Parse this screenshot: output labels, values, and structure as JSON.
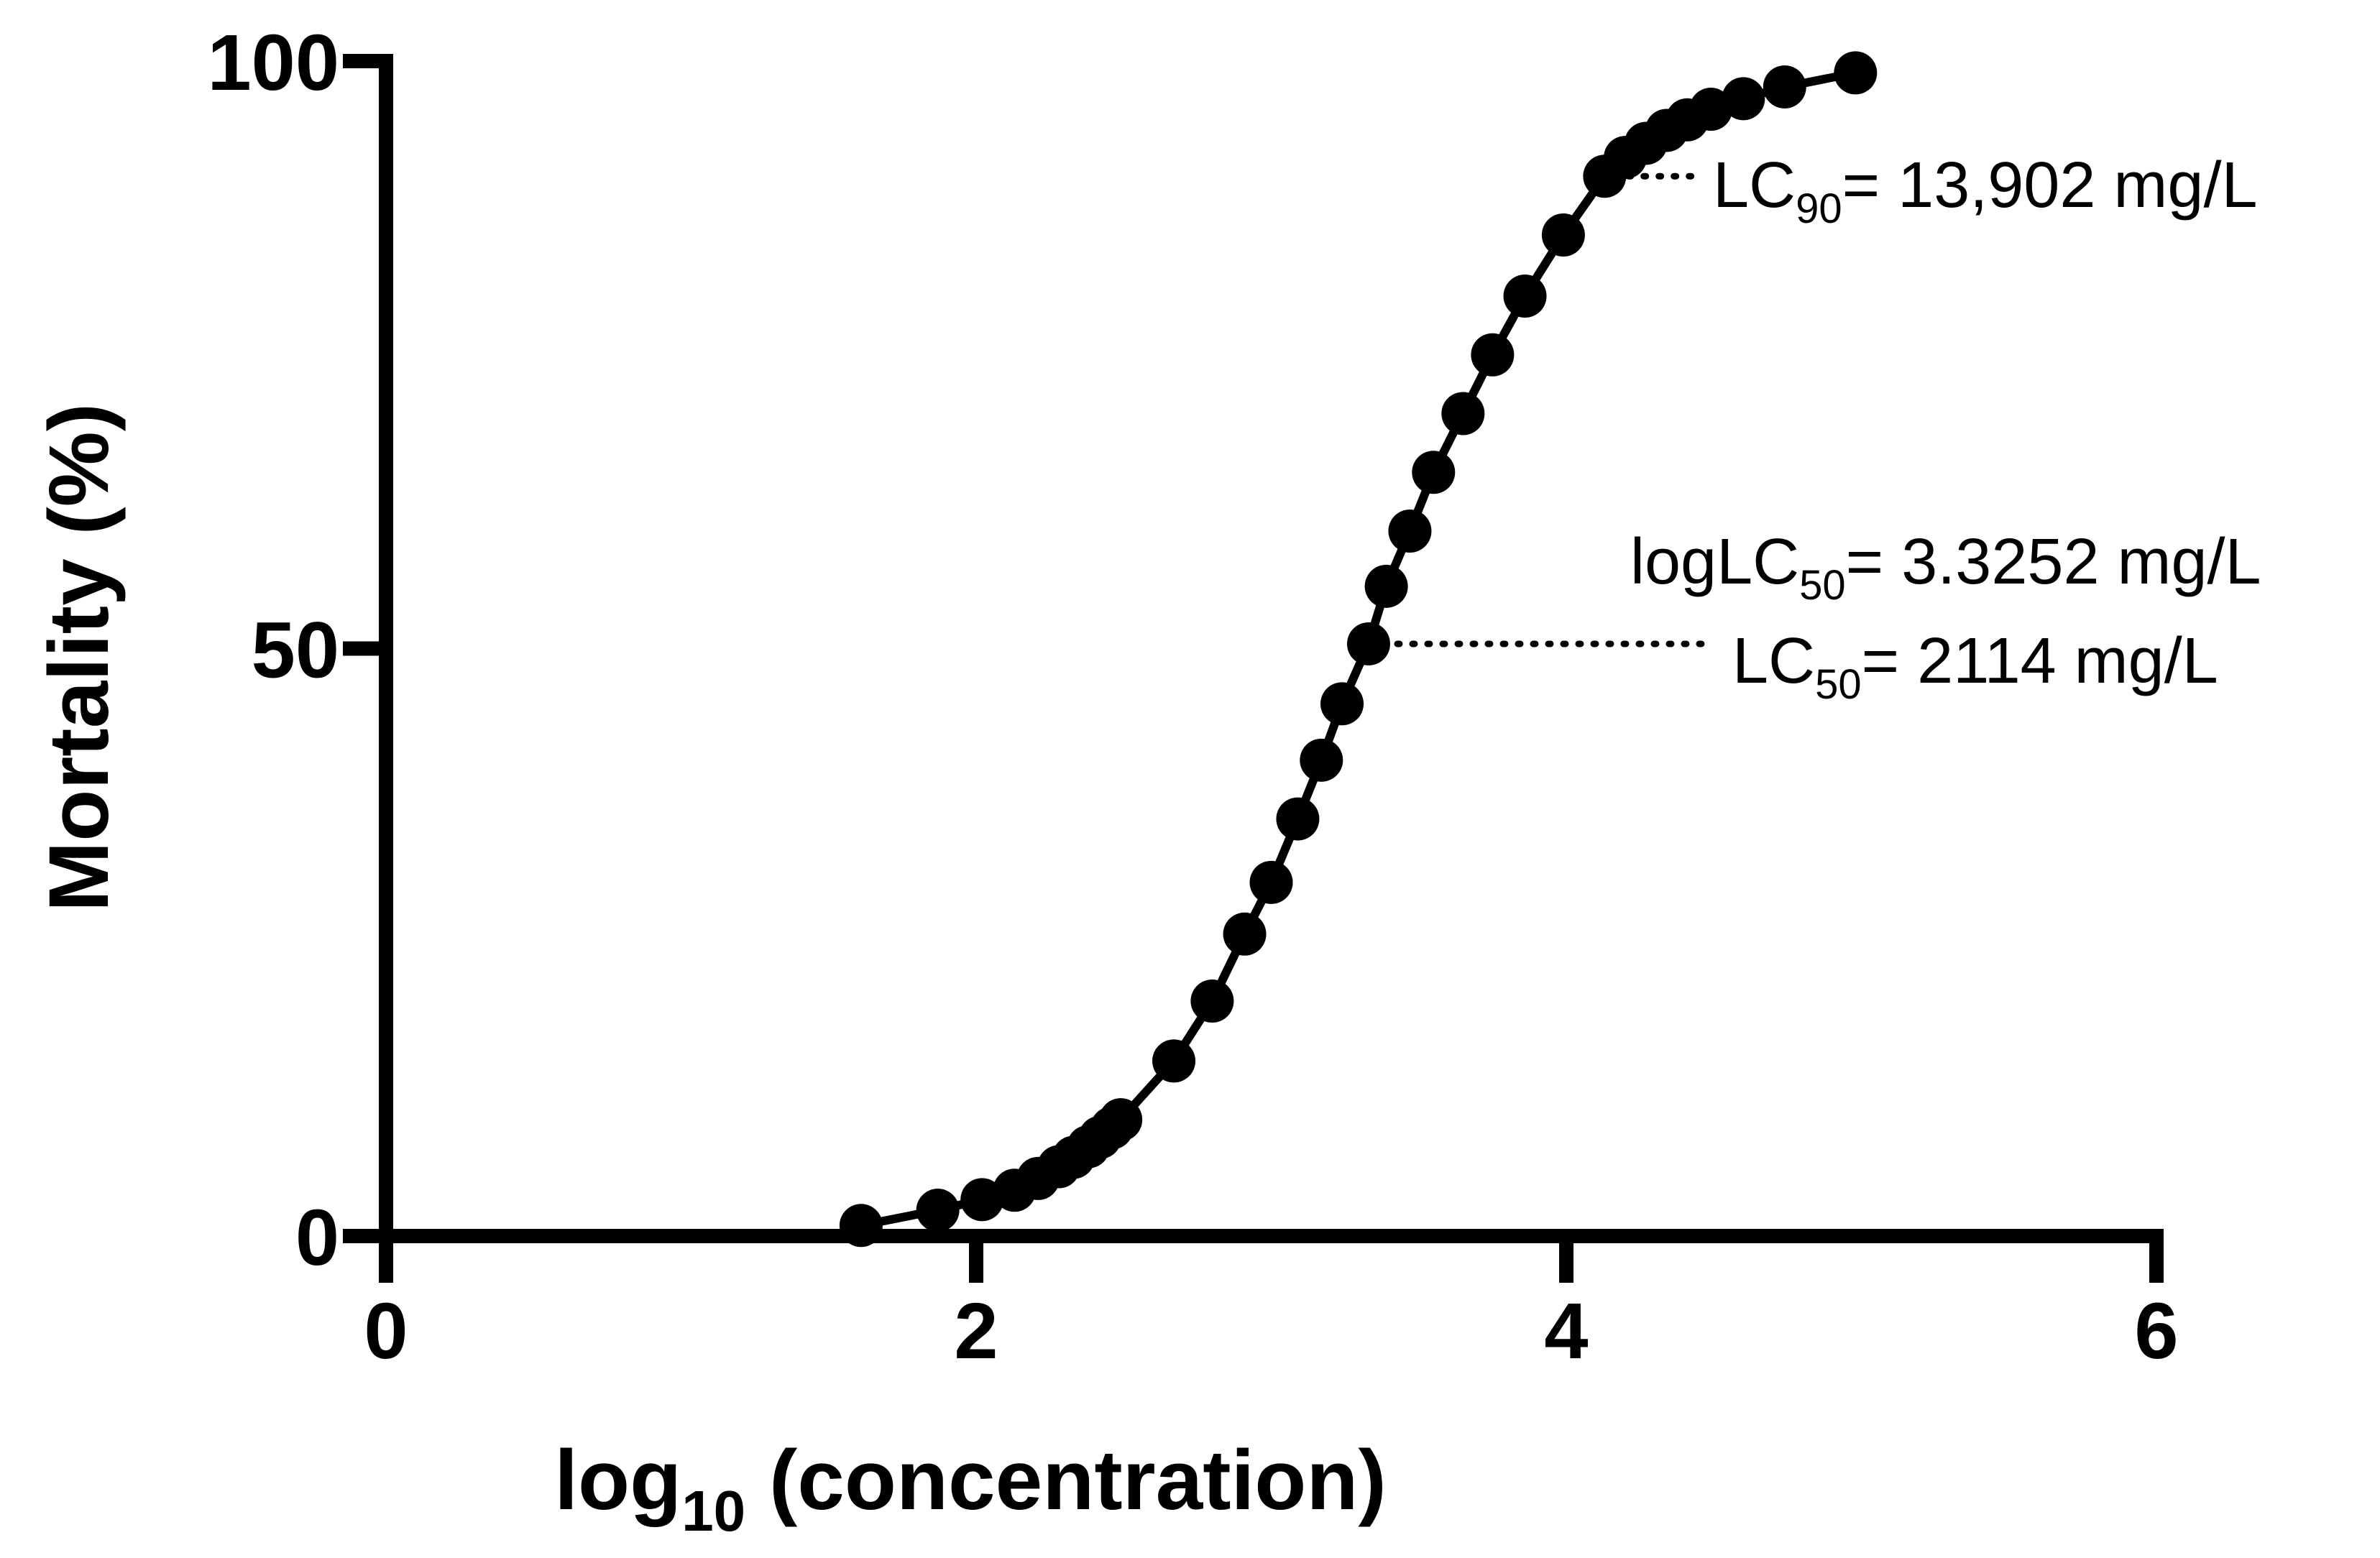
{
  "chart_data": {
    "type": "line",
    "title": "",
    "xlabel": {
      "base": "log",
      "subscript": "10",
      "rest": " (concentration)"
    },
    "ylabel": "Mortality (%)",
    "xlim": [
      0,
      6
    ],
    "ylim": [
      0,
      100
    ],
    "x_ticks": [
      0,
      2,
      4,
      6
    ],
    "y_ticks": [
      0,
      50,
      100
    ],
    "x_tick_labels": [
      "0",
      "2",
      "4",
      "6"
    ],
    "y_tick_labels": [
      "0",
      "50",
      "100"
    ],
    "grid": false,
    "legend": "none",
    "colors": {
      "line": "#000000",
      "marker": "#000000",
      "axis": "#000000"
    },
    "series": [
      {
        "marker": "circle",
        "x": [
          1.61,
          1.87,
          2.02,
          2.13,
          2.21,
          2.28,
          2.33,
          2.38,
          2.42,
          2.46,
          2.49,
          2.67,
          2.8,
          2.91,
          3.0,
          3.09,
          3.17,
          3.24,
          3.33,
          3.39,
          3.47,
          3.55,
          3.65,
          3.75,
          3.86,
          3.99,
          4.13,
          4.2,
          4.27,
          4.34,
          4.41,
          4.49,
          4.6,
          4.74,
          4.98
        ],
        "y": [
          0.9,
          2.2,
          3.1,
          3.9,
          4.9,
          5.9,
          6.7,
          7.6,
          8.4,
          9.2,
          9.9,
          14.9,
          20.0,
          25.7,
          30.1,
          35.5,
          40.5,
          45.3,
          50.4,
          55.3,
          60.0,
          65.0,
          70.0,
          75.0,
          80.0,
          85.2,
          90.2,
          91.8,
          93.0,
          94.1,
          95.0,
          95.9,
          96.8,
          97.8,
          99.0
        ]
      }
    ],
    "annotations": [
      {
        "id": "lc90",
        "anchor": [
          4.16,
          90.2
        ],
        "line_end_x": 4.45,
        "main": "LC",
        "sub": "90",
        "rest": "= 13,902 mg/L"
      },
      {
        "id": "loglc50",
        "main": "logLC",
        "sub": "50",
        "rest": "= 3.3252 mg/L"
      },
      {
        "id": "lc50",
        "anchor": [
          3.33,
          50.4
        ],
        "line_end_x": 4.48,
        "main": "LC",
        "sub": "50",
        "rest": "= 2114 mg/L"
      }
    ]
  }
}
